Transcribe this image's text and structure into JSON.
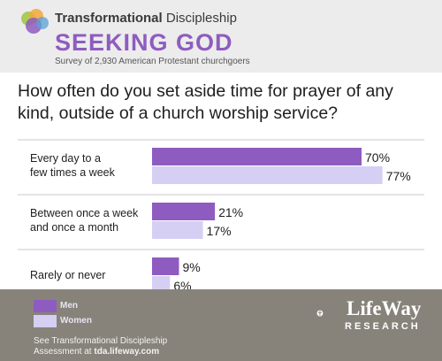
{
  "header": {
    "brand_prefix": "Transformational",
    "brand_suffix": "Discipleship",
    "title": "SEEKING GOD",
    "subtitle": "Survey of 2,930 American Protestant churchgoers"
  },
  "colors": {
    "men": "#8e5cc0",
    "women": "#d5cff4",
    "footer": "#87837a",
    "header": "#ececec"
  },
  "chart_data": {
    "type": "bar",
    "orientation": "horizontal",
    "title": "How often do you set aside time for prayer of any kind, outside of a church worship service?",
    "categories": [
      [
        "Every day to a",
        "few times a week"
      ],
      [
        "Between once a week",
        "and once a month"
      ],
      [
        "Rarely or never"
      ]
    ],
    "series": [
      {
        "name": "Men",
        "values": [
          70,
          21,
          9
        ]
      },
      {
        "name": "Women",
        "values": [
          77,
          17,
          6
        ]
      }
    ],
    "value_format": "{v}%",
    "xlim": [
      0,
      100
    ],
    "grid": false,
    "legend_position": "bottom-left"
  },
  "footer": {
    "note_line1": "See Transformational Discipleship",
    "note_line2_prefix": "Assessment at",
    "note_link": "tda.lifeway.com",
    "logo_word": "LifeWay",
    "logo_sub": "RESEARCH"
  }
}
